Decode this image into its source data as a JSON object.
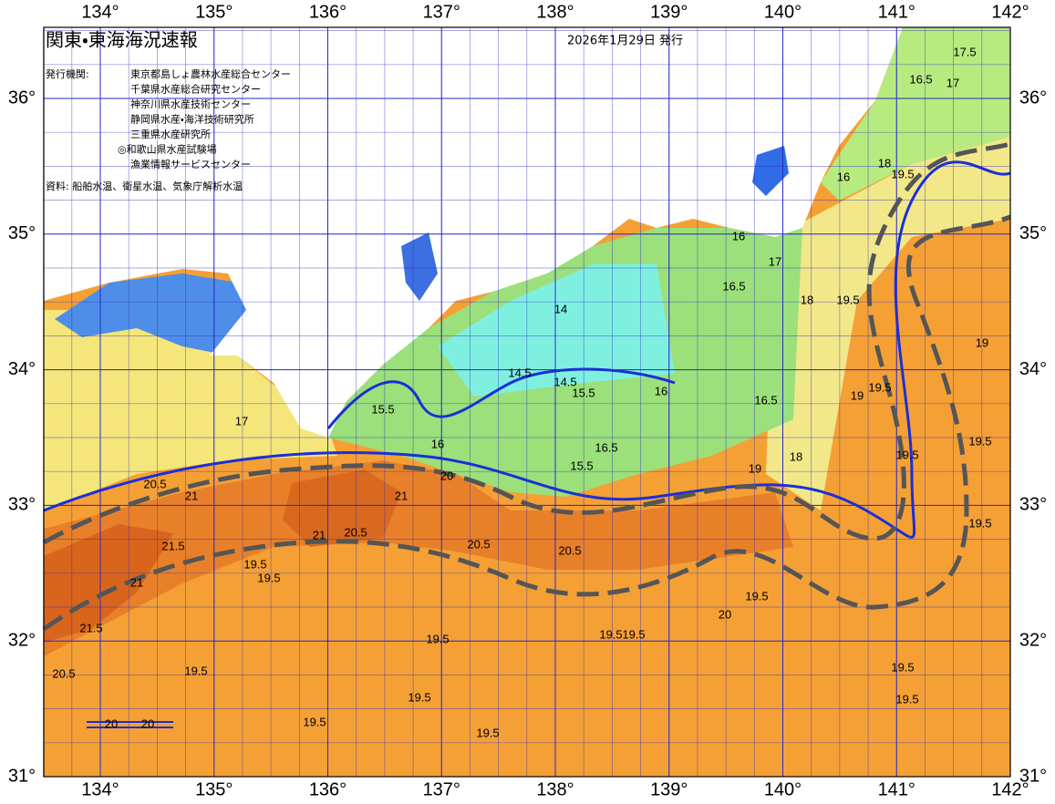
{
  "header": {
    "title": "関東・東海海況速報",
    "date": "2026年1月29日 発行"
  },
  "issuers": {
    "label": "発行機関:",
    "items": [
      "東京都島しょ農林水産総合センター",
      "千葉県水産総合研究センター",
      "神奈川県水産技術センター",
      "静岡県水産・海洋技術研究所",
      "三重県水産研究所",
      "◎和歌山県水産試験場",
      "漁業情報サービスセンター"
    ]
  },
  "source": "資料: 船舶水温、衛星水温、気象庁解析水温",
  "map": {
    "lon_ticks": [
      {
        "value": 134,
        "label": "134°"
      },
      {
        "value": 135,
        "label": "135°"
      },
      {
        "value": 136,
        "label": "136°"
      },
      {
        "value": 137,
        "label": "137°"
      },
      {
        "value": 138,
        "label": "138°"
      },
      {
        "value": 139,
        "label": "139°"
      },
      {
        "value": 140,
        "label": "140°"
      },
      {
        "value": 141,
        "label": "141°"
      },
      {
        "value": 142,
        "label": "142°"
      }
    ],
    "lat_ticks": [
      {
        "value": 36,
        "label": "36°"
      },
      {
        "value": 35,
        "label": "35°"
      },
      {
        "value": 34,
        "label": "34°"
      },
      {
        "value": 33,
        "label": "33°"
      },
      {
        "value": 32,
        "label": "32°"
      },
      {
        "value": 31,
        "label": "31°"
      }
    ],
    "contour_labels": [
      16.5,
      17,
      17.5,
      16,
      18,
      19.5,
      16,
      17,
      16.5,
      18,
      19.5,
      14,
      14.5,
      14.5,
      15.5,
      16,
      16.5,
      19,
      19.5,
      15.5,
      17,
      16,
      16.5,
      15.5,
      18,
      19,
      20,
      21,
      20.5,
      21,
      20.5,
      21,
      19.5,
      19.5,
      21.5,
      19.5,
      19.5,
      21,
      20.5,
      20.5,
      19.5,
      20,
      19.5,
      19.5,
      19.5,
      19.5,
      19.5,
      19.5,
      19.5,
      19.5,
      19.5,
      21.5,
      20.5,
      19.5,
      19
    ],
    "scale_labels": [
      20,
      20
    ]
  }
}
